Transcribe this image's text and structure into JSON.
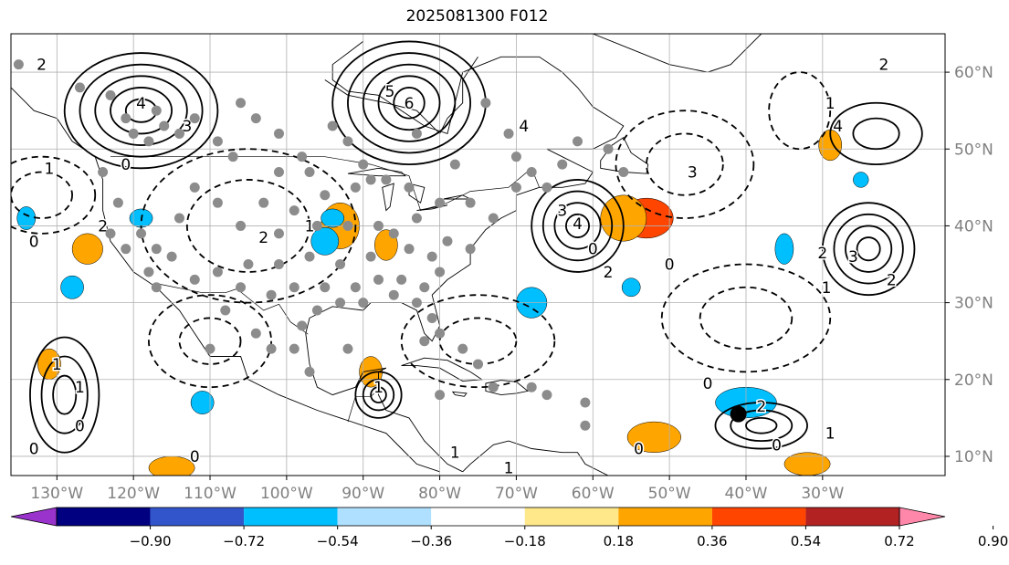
{
  "title": "2025081300 F012",
  "map": {
    "lon_range": [
      -136,
      -14
    ],
    "lat_range": [
      7.5,
      65
    ],
    "lon_ticks": [
      {
        "lon": -130,
        "label": "130°W"
      },
      {
        "lon": -120,
        "label": "120°W"
      },
      {
        "lon": -110,
        "label": "110°W"
      },
      {
        "lon": -100,
        "label": "100°W"
      },
      {
        "lon": -90,
        "label": "90°W"
      },
      {
        "lon": -80,
        "label": "80°W"
      },
      {
        "lon": -70,
        "label": "70°W"
      },
      {
        "lon": -60,
        "label": "60°W"
      },
      {
        "lon": -50,
        "label": "50°W"
      },
      {
        "lon": -40,
        "label": "40°W"
      },
      {
        "lon": -30,
        "label": "30°W"
      }
    ],
    "lat_ticks": [
      {
        "lat": 10,
        "label": "10°N"
      },
      {
        "lat": 20,
        "label": "20°N"
      },
      {
        "lat": 30,
        "label": "30°N"
      },
      {
        "lat": 40,
        "label": "40°N"
      },
      {
        "lat": 50,
        "label": "50°N"
      },
      {
        "lat": 60,
        "label": "60°N"
      }
    ],
    "tick_label_color": "#808080",
    "grid_color": "#b0b0b0"
  },
  "colorbar": {
    "colors": [
      "#9933cc",
      "#000080",
      "#3355cc",
      "#00bfff",
      "#b0e0ff",
      "#ffffff",
      "#ffe88a",
      "#ffa500",
      "#ff4500",
      "#b22222",
      "#ff88aa"
    ],
    "tick_labels": [
      "−0.90",
      "−0.72",
      "−0.54",
      "−0.36",
      "−0.18",
      "0.18",
      "0.36",
      "0.54",
      "0.72",
      "0.90"
    ]
  },
  "shaded_areas": [
    {
      "color": "#ff4500",
      "lon": -53,
      "lat": 41,
      "rx": 3.5,
      "ry": 2.6
    },
    {
      "color": "#ffa500",
      "lon": -56,
      "lat": 41,
      "rx": 3,
      "ry": 3
    },
    {
      "color": "#ffa500",
      "lon": -93,
      "lat": 40,
      "rx": 2.5,
      "ry": 3
    },
    {
      "color": "#ffa500",
      "lon": -87,
      "lat": 37.5,
      "rx": 1.5,
      "ry": 2
    },
    {
      "color": "#ffa500",
      "lon": -52,
      "lat": 12.5,
      "rx": 3.5,
      "ry": 2
    },
    {
      "color": "#ffa500",
      "lon": -32,
      "lat": 9,
      "rx": 3,
      "ry": 1.5
    },
    {
      "color": "#ffa500",
      "lon": -115,
      "lat": 8.5,
      "rx": 3,
      "ry": 1.5
    },
    {
      "color": "#ffa500",
      "lon": -131,
      "lat": 22,
      "rx": 1.5,
      "ry": 2
    },
    {
      "color": "#ffa500",
      "lon": -126,
      "lat": 37,
      "rx": 2,
      "ry": 2
    },
    {
      "color": "#ffa500",
      "lon": -29,
      "lat": 50.5,
      "rx": 1.5,
      "ry": 2
    },
    {
      "color": "#ffa500",
      "lon": -89,
      "lat": 21,
      "rx": 1.5,
      "ry": 2
    },
    {
      "color": "#00bfff",
      "lon": -95,
      "lat": 38,
      "rx": 1.8,
      "ry": 1.8
    },
    {
      "color": "#00bfff",
      "lon": -40,
      "lat": 17,
      "rx": 4,
      "ry": 2
    },
    {
      "color": "#00bfff",
      "lon": -55,
      "lat": 32,
      "rx": 1.2,
      "ry": 1.2
    },
    {
      "color": "#00bfff",
      "lon": -68,
      "lat": 30,
      "rx": 2,
      "ry": 2
    },
    {
      "color": "#00bfff",
      "lon": -128,
      "lat": 32,
      "rx": 1.5,
      "ry": 1.5
    },
    {
      "color": "#00bfff",
      "lon": -111,
      "lat": 17,
      "rx": 1.5,
      "ry": 1.5
    },
    {
      "color": "#00bfff",
      "lon": -119,
      "lat": 41,
      "rx": 1.5,
      "ry": 1.2
    },
    {
      "color": "#00bfff",
      "lon": -35,
      "lat": 37,
      "rx": 1.2,
      "ry": 2
    },
    {
      "color": "#00bfff",
      "lon": -134,
      "lat": 41,
      "rx": 1.2,
      "ry": 1.5
    },
    {
      "color": "#00bfff",
      "lon": -94,
      "lat": 41,
      "rx": 1.5,
      "ry": 1.2
    },
    {
      "color": "#00bfff",
      "lon": -25,
      "lat": 46,
      "rx": 1,
      "ry": 1
    }
  ],
  "contours_solid": [
    {
      "lon": -119,
      "lat": 55,
      "rx": [
        2,
        4,
        6,
        8,
        10
      ],
      "ry": [
        1.5,
        3,
        4.5,
        6,
        7.5
      ]
    },
    {
      "lon": -84,
      "lat": 56,
      "rx": [
        2,
        4,
        6,
        8,
        10
      ],
      "ry": [
        2,
        3.5,
        5,
        6.5,
        8
      ]
    },
    {
      "lon": -62,
      "lat": 40,
      "rx": [
        1.5,
        3,
        4.5,
        6
      ],
      "ry": [
        1.5,
        3,
        4.5,
        6
      ]
    },
    {
      "lon": -129,
      "lat": 18,
      "rx": [
        1.5,
        3,
        4.5
      ],
      "ry": [
        2.5,
        5,
        7.5
      ]
    },
    {
      "lon": -24,
      "lat": 37,
      "rx": [
        1.5,
        3,
        4.5,
        6
      ],
      "ry": [
        1.5,
        3,
        4.5,
        6
      ]
    },
    {
      "lon": -23,
      "lat": 52,
      "rx": [
        3,
        6
      ],
      "ry": [
        2,
        4
      ]
    },
    {
      "lon": -88,
      "lat": 18,
      "rx": [
        1,
        2,
        3
      ],
      "ry": [
        1,
        2,
        3
      ]
    },
    {
      "lon": -38,
      "lat": 14,
      "rx": [
        2,
        4,
        6
      ],
      "ry": [
        1,
        2,
        3
      ]
    }
  ],
  "contours_dashed": [
    {
      "lon": -105,
      "lat": 40,
      "rx": [
        8,
        14
      ],
      "ry": [
        6,
        10
      ]
    },
    {
      "lon": -48,
      "lat": 48,
      "rx": [
        5,
        9
      ],
      "ry": [
        4,
        7
      ]
    },
    {
      "lon": -110,
      "lat": 25,
      "rx": [
        4,
        8
      ],
      "ry": [
        3,
        6
      ]
    },
    {
      "lon": -75,
      "lat": 25,
      "rx": [
        5,
        10
      ],
      "ry": [
        3,
        6
      ]
    },
    {
      "lon": -40,
      "lat": 28,
      "rx": [
        6,
        11
      ],
      "ry": [
        4,
        7
      ]
    },
    {
      "lon": -33,
      "lat": 55,
      "rx": [
        4
      ],
      "ry": [
        5
      ]
    },
    {
      "lon": -132,
      "lat": 44,
      "rx": [
        4,
        7
      ],
      "ry": [
        3,
        5
      ]
    }
  ],
  "contour_labels": [
    {
      "lon": -119,
      "lat": 56,
      "text": "4"
    },
    {
      "lon": -113,
      "lat": 53,
      "text": "3"
    },
    {
      "lon": -84,
      "lat": 56,
      "text": "6"
    },
    {
      "lon": -86.5,
      "lat": 57.5,
      "text": "5"
    },
    {
      "lon": -62,
      "lat": 40.3,
      "text": "4"
    },
    {
      "lon": -64,
      "lat": 42,
      "text": "3"
    },
    {
      "lon": -58,
      "lat": 34,
      "text": "2"
    },
    {
      "lon": -60,
      "lat": 37,
      "text": "0"
    },
    {
      "lon": -124,
      "lat": 40,
      "text": "2"
    },
    {
      "lon": -133,
      "lat": 38,
      "text": "0"
    },
    {
      "lon": -131,
      "lat": 47.5,
      "text": "1"
    },
    {
      "lon": -121,
      "lat": 48,
      "text": "0"
    },
    {
      "lon": -103,
      "lat": 38.5,
      "text": "2"
    },
    {
      "lon": -97,
      "lat": 40,
      "text": "1"
    },
    {
      "lon": -28,
      "lat": 53,
      "text": "4"
    },
    {
      "lon": -26,
      "lat": 36,
      "text": "3"
    },
    {
      "lon": -30,
      "lat": 36.5,
      "text": "2"
    },
    {
      "lon": -29.5,
      "lat": 32,
      "text": "1"
    },
    {
      "lon": -21,
      "lat": 33,
      "text": "2"
    },
    {
      "lon": -29,
      "lat": 56,
      "text": "1"
    },
    {
      "lon": -22,
      "lat": 61,
      "text": "2"
    },
    {
      "lon": -47,
      "lat": 47,
      "text": "3"
    },
    {
      "lon": -50,
      "lat": 35,
      "text": "0"
    },
    {
      "lon": -69,
      "lat": 53,
      "text": "4"
    },
    {
      "lon": -38,
      "lat": 16.5,
      "text": "2"
    },
    {
      "lon": -29,
      "lat": 13,
      "text": "1"
    },
    {
      "lon": -36,
      "lat": 11.5,
      "text": "0"
    },
    {
      "lon": -130,
      "lat": 22,
      "text": "1"
    },
    {
      "lon": -127,
      "lat": 19,
      "text": "1"
    },
    {
      "lon": -133,
      "lat": 11,
      "text": "0"
    },
    {
      "lon": -127,
      "lat": 14,
      "text": "0"
    },
    {
      "lon": -132,
      "lat": 61,
      "text": "2"
    },
    {
      "lon": -88,
      "lat": 19,
      "text": "1"
    },
    {
      "lon": -78,
      "lat": 10.5,
      "text": "1"
    },
    {
      "lon": -71,
      "lat": 8.5,
      "text": "1"
    },
    {
      "lon": -45,
      "lat": 19.5,
      "text": "0"
    },
    {
      "lon": -54,
      "lat": 11,
      "text": "0"
    },
    {
      "lon": -112,
      "lat": 10,
      "text": "0"
    }
  ],
  "stations": [
    [
      -135,
      61
    ],
    [
      -127,
      58
    ],
    [
      -123,
      57
    ],
    [
      -121,
      54
    ],
    [
      -117,
      55
    ],
    [
      -116,
      53
    ],
    [
      -118,
      51
    ],
    [
      -114,
      52
    ],
    [
      -120,
      52
    ],
    [
      -112,
      54
    ],
    [
      -109,
      51
    ],
    [
      -106,
      56
    ],
    [
      -104,
      54
    ],
    [
      -101,
      52
    ],
    [
      -98,
      49
    ],
    [
      -94,
      53
    ],
    [
      -92,
      51
    ],
    [
      -90,
      48
    ],
    [
      -107,
      49
    ],
    [
      -101,
      47
    ],
    [
      -97,
      47
    ],
    [
      -95,
      44
    ],
    [
      -91,
      45
    ],
    [
      -87,
      46
    ],
    [
      -84,
      45
    ],
    [
      -80,
      43
    ],
    [
      -76,
      43
    ],
    [
      -73,
      41
    ],
    [
      -70,
      45
    ],
    [
      -68,
      47
    ],
    [
      -66,
      45
    ],
    [
      -64,
      48
    ],
    [
      -70,
      49
    ],
    [
      -78,
      48
    ],
    [
      -71,
      52
    ],
    [
      -62,
      51
    ],
    [
      -58,
      50
    ],
    [
      -56,
      47
    ],
    [
      -124,
      47
    ],
    [
      -122,
      43
    ],
    [
      -123,
      39
    ],
    [
      -119,
      39
    ],
    [
      -117,
      37
    ],
    [
      -114,
      41
    ],
    [
      -112,
      45
    ],
    [
      -109,
      43
    ],
    [
      -106,
      40
    ],
    [
      -103,
      43
    ],
    [
      -99,
      42
    ],
    [
      -101,
      39
    ],
    [
      -96,
      40
    ],
    [
      -92,
      40
    ],
    [
      -88,
      40
    ],
    [
      -86,
      39
    ],
    [
      -83,
      41
    ],
    [
      -81,
      36
    ],
    [
      -79,
      38
    ],
    [
      -76,
      37
    ],
    [
      -84,
      37
    ],
    [
      -89,
      36
    ],
    [
      -93,
      35
    ],
    [
      -97,
      36
    ],
    [
      -101,
      35
    ],
    [
      -105,
      35
    ],
    [
      -109,
      34
    ],
    [
      -112,
      33
    ],
    [
      -115,
      36
    ],
    [
      -118,
      34
    ],
    [
      -121,
      37
    ],
    [
      -117,
      32
    ],
    [
      -106,
      32
    ],
    [
      -102,
      31
    ],
    [
      -99,
      32
    ],
    [
      -95,
      32
    ],
    [
      -91,
      32
    ],
    [
      -88,
      33
    ],
    [
      -85,
      33
    ],
    [
      -82,
      32
    ],
    [
      -80,
      34
    ],
    [
      -96,
      29
    ],
    [
      -93,
      30
    ],
    [
      -90,
      30
    ],
    [
      -86,
      31
    ],
    [
      -83,
      30
    ],
    [
      -81,
      28
    ],
    [
      -82,
      25
    ],
    [
      -80,
      26
    ],
    [
      -77,
      24
    ],
    [
      -75,
      22
    ],
    [
      -98,
      27
    ],
    [
      -99,
      24
    ],
    [
      -104,
      26
    ],
    [
      -110,
      24
    ],
    [
      -80,
      18
    ],
    [
      -73,
      19
    ],
    [
      -66,
      18
    ],
    [
      -61,
      17
    ],
    [
      -108,
      29
    ],
    [
      -102,
      24
    ],
    [
      -97,
      21
    ],
    [
      -92,
      24
    ],
    [
      -61,
      14
    ],
    [
      -68,
      19
    ],
    [
      -89,
      46
    ],
    [
      -74,
      56
    ],
    [
      -83,
      52
    ]
  ],
  "black_marker": {
    "lon": -41,
    "lat": 15.5
  }
}
